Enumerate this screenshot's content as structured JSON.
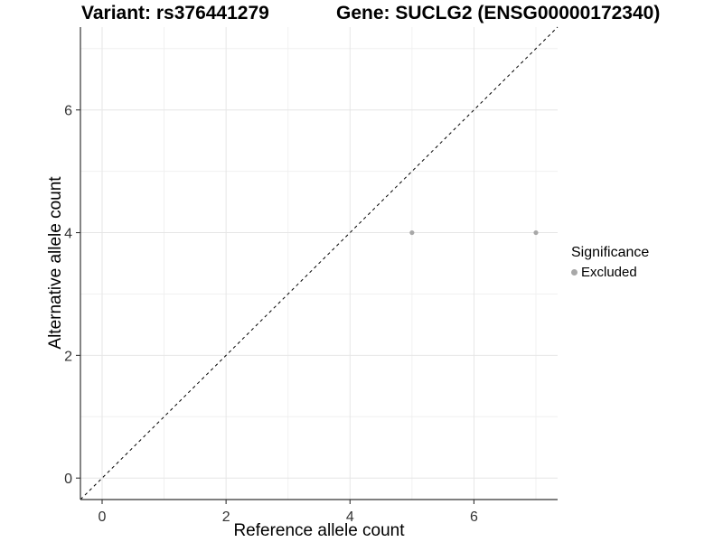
{
  "titles": {
    "variant": "Variant: rs376441279",
    "gene": "Gene: SUCLG2 (ENSG00000172340)"
  },
  "chart_data": {
    "type": "scatter",
    "xlabel": "Reference allele count",
    "ylabel": "Alternative allele count",
    "xlim": [
      -0.35,
      7.35
    ],
    "ylim": [
      -0.35,
      7.35
    ],
    "x_major_ticks": [
      0,
      2,
      4,
      6
    ],
    "y_major_ticks": [
      0,
      2,
      4,
      6
    ],
    "x_minor_ticks": [
      1,
      3,
      5,
      7
    ],
    "y_minor_ticks": [
      1,
      3,
      5,
      7
    ],
    "grid": true,
    "series": [
      {
        "name": "Excluded",
        "color": "#a8a8a8",
        "points": [
          {
            "x": 5,
            "y": 4
          },
          {
            "x": 7,
            "y": 4
          }
        ]
      }
    ],
    "reference_line": {
      "style": "dashed",
      "color": "#000000",
      "from": [
        -0.35,
        -0.35
      ],
      "to": [
        7.35,
        7.35
      ]
    },
    "legend": {
      "title": "Significance",
      "position": "right",
      "items": [
        {
          "label": "Excluded",
          "color": "#a8a8a8"
        }
      ]
    }
  },
  "colors": {
    "background": "#ffffff",
    "axis_line": "#333333",
    "tick_label": "#333333",
    "grid_major": "#e6e6e6",
    "grid_minor": "#f0f0f0",
    "point": "#a8a8a8",
    "reference_line": "#000000"
  }
}
